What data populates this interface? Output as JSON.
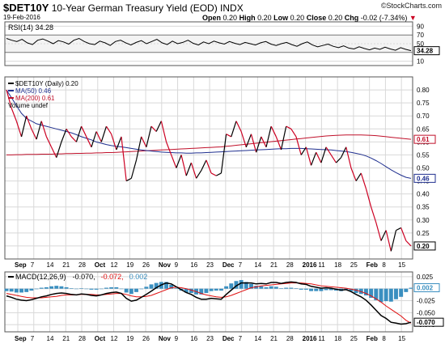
{
  "header": {
    "symbol": "$DET10Y",
    "name": "10-Year German Treasury Yield (EOD)",
    "exchange": "INDX",
    "date": "19-Feb-2016",
    "brand": "©StockCharts.com",
    "quote": {
      "open_label": "Open",
      "open": "0.20",
      "high_label": "High",
      "high": "0.20",
      "low_label": "Low",
      "low": "0.20",
      "close_label": "Close",
      "close": "0.20",
      "chg_label": "Chg",
      "chg": "-0.02 (-7.34%)"
    }
  },
  "colors": {
    "price": "#000000",
    "price_down": "#cc0022",
    "ma50": "#1f2f8f",
    "ma200": "#c0102a",
    "macd": "#000000",
    "signal": "#e01010",
    "histogram": "#3a8fc0",
    "grid": "#d8d8d8"
  },
  "chart_data": [
    {
      "type": "line",
      "title": "RSI(14) 34.28",
      "label_value": "34.28",
      "ylim": [
        0,
        100
      ],
      "yticks": [
        10,
        30,
        50,
        70,
        90
      ],
      "values": [
        62,
        58,
        55,
        60,
        52,
        48,
        58,
        61,
        56,
        50,
        57,
        54,
        49,
        58,
        62,
        55,
        50,
        48,
        56,
        52,
        46,
        55,
        58,
        52,
        47,
        53,
        57,
        50,
        55,
        60,
        52,
        48,
        56,
        50,
        53,
        58,
        51,
        47,
        54,
        50,
        56,
        52,
        49,
        55,
        51,
        48,
        53,
        50,
        47,
        52,
        55,
        49,
        46,
        50,
        53,
        48,
        44,
        50,
        54,
        47,
        43,
        46,
        49,
        44,
        41,
        45,
        40,
        38,
        43,
        39,
        36,
        40,
        37,
        42,
        38,
        35,
        41,
        37,
        34
      ]
    },
    {
      "type": "line",
      "title": "$DET10Y (Daily) 0.20",
      "x_labels": [
        "Sep",
        "7",
        "14",
        "21",
        "28",
        "Oct",
        "12",
        "19",
        "26",
        "Nov",
        "9",
        "16",
        "23",
        "Dec",
        "7",
        "14",
        "21",
        "28",
        "2016",
        "11",
        "18",
        "25",
        "Feb",
        "8",
        "15"
      ],
      "ylim": [
        0.15,
        0.85
      ],
      "yticks": [
        0.2,
        0.25,
        0.3,
        0.35,
        0.4,
        0.45,
        0.5,
        0.55,
        0.6,
        0.65,
        0.7,
        0.75,
        0.8
      ],
      "last_value": "0.20",
      "series": [
        {
          "name": "$DET10Y (Daily) 0.20",
          "values": [
            0.8,
            0.73,
            0.68,
            0.62,
            0.7,
            0.65,
            0.61,
            0.68,
            0.62,
            0.58,
            0.54,
            0.6,
            0.65,
            0.62,
            0.6,
            0.66,
            0.62,
            0.58,
            0.64,
            0.6,
            0.66,
            0.63,
            0.57,
            0.62,
            0.45,
            0.46,
            0.53,
            0.62,
            0.58,
            0.66,
            0.64,
            0.68,
            0.6,
            0.55,
            0.5,
            0.55,
            0.47,
            0.52,
            0.46,
            0.49,
            0.53,
            0.48,
            0.47,
            0.48,
            0.63,
            0.62,
            0.68,
            0.64,
            0.58,
            0.63,
            0.56,
            0.62,
            0.58,
            0.66,
            0.62,
            0.57,
            0.66,
            0.65,
            0.62,
            0.55,
            0.58,
            0.51,
            0.56,
            0.52,
            0.58,
            0.55,
            0.52,
            0.54,
            0.58,
            0.5,
            0.45,
            0.48,
            0.42,
            0.35,
            0.29,
            0.22,
            0.26,
            0.18,
            0.26,
            0.27,
            0.22,
            0.2
          ]
        },
        {
          "name": "MA(50) 0.46",
          "values": [
            0.8,
            0.77,
            0.74,
            0.71,
            0.69,
            0.68,
            0.67,
            0.665,
            0.66,
            0.655,
            0.65,
            0.645,
            0.64,
            0.635,
            0.628,
            0.62,
            0.614,
            0.608,
            0.6,
            0.595,
            0.59,
            0.586,
            0.583,
            0.581,
            0.578,
            0.575,
            0.572,
            0.569,
            0.567,
            0.565,
            0.563,
            0.561,
            0.56,
            0.559,
            0.558,
            0.558,
            0.557,
            0.557,
            0.558,
            0.558,
            0.559,
            0.56,
            0.561,
            0.562,
            0.563,
            0.564,
            0.565,
            0.566,
            0.567,
            0.568,
            0.569,
            0.57,
            0.571,
            0.572,
            0.573,
            0.574,
            0.574,
            0.575,
            0.575,
            0.575,
            0.574,
            0.573,
            0.572,
            0.571,
            0.57,
            0.569,
            0.567,
            0.565,
            0.563,
            0.56,
            0.556,
            0.552,
            0.546,
            0.538,
            0.528,
            0.517,
            0.505,
            0.493,
            0.482,
            0.472,
            0.464,
            0.46
          ]
        },
        {
          "name": "MA(200) 0.61",
          "values": [
            0.55,
            0.55,
            0.551,
            0.551,
            0.552,
            0.552,
            0.552,
            0.553,
            0.553,
            0.553,
            0.554,
            0.554,
            0.555,
            0.555,
            0.556,
            0.556,
            0.557,
            0.557,
            0.558,
            0.558,
            0.559,
            0.559,
            0.56,
            0.561,
            0.562,
            0.563,
            0.564,
            0.565,
            0.566,
            0.567,
            0.568,
            0.569,
            0.57,
            0.571,
            0.572,
            0.573,
            0.574,
            0.575,
            0.576,
            0.577,
            0.578,
            0.579,
            0.58,
            0.581,
            0.583,
            0.585,
            0.587,
            0.589,
            0.591,
            0.593,
            0.595,
            0.597,
            0.599,
            0.601,
            0.603,
            0.605,
            0.607,
            0.609,
            0.611,
            0.613,
            0.615,
            0.617,
            0.619,
            0.621,
            0.623,
            0.624,
            0.625,
            0.626,
            0.627,
            0.627,
            0.627,
            0.627,
            0.626,
            0.625,
            0.624,
            0.622,
            0.62,
            0.618,
            0.616,
            0.614,
            0.612,
            0.61
          ]
        }
      ],
      "legend": [
        "$DET10Y (Daily) 0.20",
        "MA(50) 0.46",
        "MA(200) 0.61",
        "Volume undef"
      ],
      "value_labels": {
        "ma200": "0.61",
        "ma50": "0.46",
        "last": "0.20"
      }
    },
    {
      "type": "line",
      "title": "MACD(12,26,9) -0.070, -0.072, 0.002",
      "legend": [
        "MACD(12,26,9)",
        "-0.070",
        "-0.072",
        "0.002"
      ],
      "ylim": [
        -0.09,
        0.035
      ],
      "yticks": [
        0.025,
        0.0,
        -0.025,
        -0.05,
        -0.075
      ],
      "ytick_labels": [
        "0.025",
        "0.000",
        "-0.025",
        "-0.050",
        "-0.075"
      ],
      "value_labels": {
        "hist": "0.002",
        "macd": "-0.070"
      },
      "series": [
        {
          "name": "MACD(12,26,9)",
          "values": [
            -0.015,
            -0.018,
            -0.022,
            -0.024,
            -0.025,
            -0.023,
            -0.02,
            -0.017,
            -0.015,
            -0.012,
            -0.01,
            -0.009,
            -0.01,
            -0.012,
            -0.013,
            -0.011,
            -0.012,
            -0.014,
            -0.015,
            -0.013,
            -0.01,
            -0.008,
            -0.007,
            -0.01,
            -0.02,
            -0.026,
            -0.024,
            -0.018,
            -0.012,
            -0.005,
            0.002,
            0.008,
            0.012,
            0.01,
            0.004,
            -0.002,
            -0.008,
            -0.012,
            -0.018,
            -0.022,
            -0.022,
            -0.02,
            -0.021,
            -0.022,
            -0.012,
            -0.003,
            0.006,
            0.012,
            0.012,
            0.012,
            0.01,
            0.011,
            0.01,
            0.013,
            0.013,
            0.011,
            0.013,
            0.014,
            0.013,
            0.01,
            0.009,
            0.005,
            0.003,
            0.001,
            0.002,
            0.001,
            -0.001,
            -0.003,
            -0.002,
            -0.006,
            -0.012,
            -0.017,
            -0.024,
            -0.034,
            -0.045,
            -0.056,
            -0.062,
            -0.07,
            -0.072,
            -0.074,
            -0.073,
            -0.07
          ]
        },
        {
          "name": "Signal",
          "values": [
            -0.01,
            -0.012,
            -0.014,
            -0.016,
            -0.018,
            -0.019,
            -0.019,
            -0.019,
            -0.018,
            -0.017,
            -0.016,
            -0.014,
            -0.013,
            -0.013,
            -0.013,
            -0.012,
            -0.012,
            -0.012,
            -0.013,
            -0.013,
            -0.012,
            -0.011,
            -0.01,
            -0.01,
            -0.012,
            -0.015,
            -0.017,
            -0.017,
            -0.016,
            -0.014,
            -0.01,
            -0.006,
            -0.002,
            0.002,
            0.003,
            0.002,
            0.0,
            -0.003,
            -0.006,
            -0.01,
            -0.013,
            -0.015,
            -0.017,
            -0.018,
            -0.017,
            -0.014,
            -0.01,
            -0.006,
            -0.002,
            0.002,
            0.004,
            0.006,
            0.007,
            0.008,
            0.009,
            0.01,
            0.011,
            0.012,
            0.012,
            0.012,
            0.011,
            0.01,
            0.008,
            0.006,
            0.005,
            0.004,
            0.003,
            0.002,
            0.001,
            -0.001,
            -0.003,
            -0.006,
            -0.01,
            -0.015,
            -0.021,
            -0.028,
            -0.036,
            -0.043,
            -0.05,
            -0.057,
            -0.066,
            -0.072
          ]
        },
        {
          "name": "Histogram",
          "values": [
            -0.005,
            -0.006,
            -0.008,
            -0.008,
            -0.007,
            -0.004,
            -0.001,
            0.002,
            0.003,
            0.005,
            0.006,
            0.005,
            0.003,
            0.001,
            0.0,
            0.001,
            0.0,
            -0.002,
            -0.002,
            0.0,
            0.002,
            0.003,
            0.003,
            0.0,
            -0.008,
            -0.011,
            -0.007,
            -0.001,
            0.004,
            0.009,
            0.012,
            0.014,
            0.014,
            0.008,
            0.001,
            -0.004,
            -0.008,
            -0.009,
            -0.012,
            -0.012,
            -0.009,
            -0.005,
            -0.004,
            -0.004,
            0.005,
            0.011,
            0.016,
            0.018,
            0.014,
            0.01,
            0.006,
            0.005,
            0.003,
            0.005,
            0.004,
            0.001,
            0.002,
            0.002,
            0.001,
            -0.002,
            -0.002,
            -0.005,
            -0.005,
            -0.005,
            -0.003,
            -0.003,
            -0.004,
            -0.005,
            -0.003,
            -0.005,
            -0.009,
            -0.011,
            -0.014,
            -0.019,
            -0.024,
            -0.028,
            -0.026,
            -0.027,
            -0.022,
            -0.017,
            -0.007,
            0.002
          ]
        }
      ]
    }
  ]
}
